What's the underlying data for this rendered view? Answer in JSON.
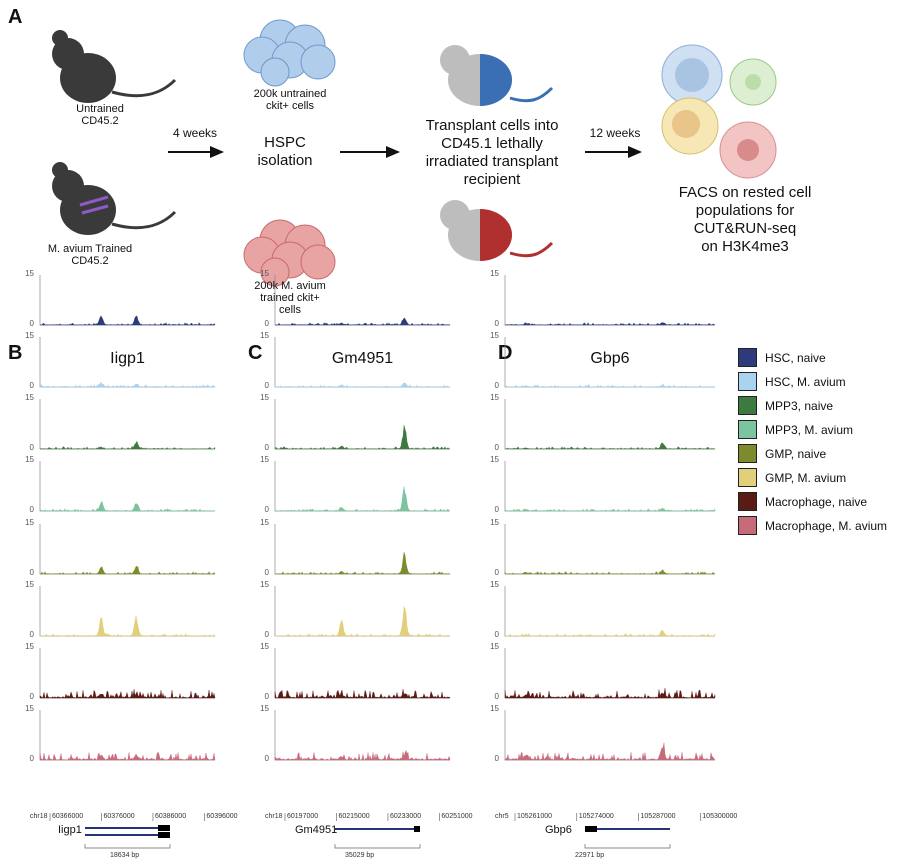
{
  "panel_labels": [
    "A",
    "B",
    "C",
    "D"
  ],
  "schematic": {
    "untrained_mouse": "Untrained\nCD45.2",
    "trained_mouse": "M. avium Trained\nCD45.2",
    "weeks1": "4 weeks",
    "hspc": "HSPC\nisolation",
    "untrained_cells": "200k untrained\nckit+ cells",
    "trained_cells": "200k M. avium\ntrained ckit+\ncells",
    "transplant": "Transplant cells into\nCD45.1 lethally\nirradiated transplant\nrecipient",
    "weeks2": "12 weeks",
    "facs": "FACS on rested cell\npopulations for\nCUT&RUN-seq\non H3K4me3",
    "colors": {
      "mouse": "#3a3a3a",
      "recipient": "#bdbdbd",
      "blue": "#3a6fb5",
      "red": "#b03030"
    }
  },
  "legend": [
    {
      "label": "HSC, naive",
      "color": "#2d3a7c"
    },
    {
      "label": "HSC, M. avium",
      "color": "#a9d3ef"
    },
    {
      "label": "MPP3, naive",
      "color": "#3d7a3d"
    },
    {
      "label": "MPP3, M. avium",
      "color": "#7cc4a0"
    },
    {
      "label": "GMP, naive",
      "color": "#7e8a2c"
    },
    {
      "label": "GMP, M. avium",
      "color": "#e2cf7c"
    },
    {
      "label": "Macrophage, naive",
      "color": "#5a1b15"
    },
    {
      "label": "Macrophage, M. avium",
      "color": "#c76b7b"
    }
  ],
  "axis": {
    "max_label": "15",
    "min_label": "0",
    "ylim": [
      0,
      15
    ]
  },
  "panels": [
    {
      "gene": "Iigp1",
      "chr": "chr18",
      "ticks": [
        "60366000",
        "60376000",
        "60386000",
        "60396000"
      ],
      "scale": "18634 bp",
      "peaks": [
        [
          3,
          3
        ],
        [
          1,
          1
        ],
        [
          0.5,
          2.5
        ],
        [
          3,
          3
        ],
        [
          2.5,
          2.5
        ],
        [
          6,
          6.5
        ],
        [
          1.2,
          1.2
        ],
        [
          1.3,
          1.3
        ]
      ]
    },
    {
      "gene": "Gm4951",
      "chr": "chr18",
      "ticks": [
        "60197000",
        "60215000",
        "60233000",
        "60251000"
      ],
      "scale": "35029 bp",
      "peaks": [
        [
          0.6,
          2
        ],
        [
          0.5,
          1.5
        ],
        [
          1,
          7.5
        ],
        [
          1.2,
          8
        ],
        [
          1,
          6.5
        ],
        [
          5,
          10.5
        ],
        [
          1,
          1.2
        ],
        [
          1,
          1.2
        ]
      ]
    },
    {
      "gene": "Gbp6",
      "chr": "chr5",
      "ticks": [
        "105261000",
        "105274000",
        "105287000",
        "105300000"
      ],
      "scale": "22971 bp",
      "peaks": [
        [
          0.5,
          0.8
        ],
        [
          0.3,
          0.5
        ],
        [
          0.3,
          2
        ],
        [
          0.5,
          0.8
        ],
        [
          0.5,
          0.8
        ],
        [
          0.5,
          2
        ],
        [
          1,
          1.5
        ],
        [
          1.5,
          5
        ]
      ]
    }
  ]
}
